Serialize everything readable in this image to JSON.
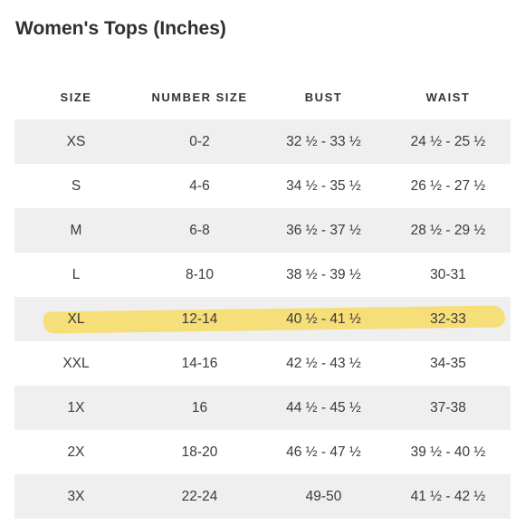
{
  "title": "Women's Tops (Inches)",
  "columns": [
    "SIZE",
    "NUMBER SIZE",
    "BUST",
    "WAIST"
  ],
  "rows": [
    {
      "size": "XS",
      "number": "0-2",
      "bust": "32 ½ - 33 ½",
      "waist": "24 ½ - 25 ½"
    },
    {
      "size": "S",
      "number": "4-6",
      "bust": "34 ½ - 35 ½",
      "waist": "26 ½ - 27 ½"
    },
    {
      "size": "M",
      "number": "6-8",
      "bust": "36 ½ - 37 ½",
      "waist": "28 ½ - 29 ½"
    },
    {
      "size": "L",
      "number": "8-10",
      "bust": "38 ½ - 39 ½",
      "waist": "30-31"
    },
    {
      "size": "XL",
      "number": "12-14",
      "bust": "40 ½ - 41 ½",
      "waist": "32-33"
    },
    {
      "size": "XXL",
      "number": "14-16",
      "bust": "42 ½ - 43 ½",
      "waist": "34-35"
    },
    {
      "size": "1X",
      "number": "16",
      "bust": "44 ½ - 45 ½",
      "waist": "37-38"
    },
    {
      "size": "2X",
      "number": "18-20",
      "bust": "46 ½ - 47 ½",
      "waist": "39 ½ - 40 ½"
    },
    {
      "size": "3X",
      "number": "22-24",
      "bust": "49-50",
      "waist": "41 ½ - 42 ½"
    }
  ],
  "highlighted_row": 4,
  "highlight_color": "#f6dc6a",
  "stripe_color": "#efefef"
}
